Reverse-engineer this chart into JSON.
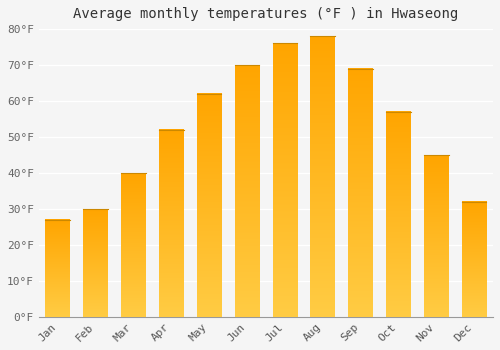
{
  "title": "Average monthly temperatures (°F ) in Hwaseong",
  "months": [
    "Jan",
    "Feb",
    "Mar",
    "Apr",
    "May",
    "Jun",
    "Jul",
    "Aug",
    "Sep",
    "Oct",
    "Nov",
    "Dec"
  ],
  "values": [
    27,
    30,
    40,
    52,
    62,
    70,
    76,
    78,
    69,
    57,
    45,
    32
  ],
  "bar_color_main": "#FFA500",
  "bar_color_light": "#FFCC55",
  "bar_edge_color": "#CC8800",
  "background_color": "#F5F5F5",
  "grid_color": "#DDDDDD",
  "ylim": [
    0,
    80
  ],
  "yticks": [
    0,
    10,
    20,
    30,
    40,
    50,
    60,
    70,
    80
  ],
  "ytick_labels": [
    "0°F",
    "10°F",
    "20°F",
    "30°F",
    "40°F",
    "50°F",
    "60°F",
    "70°F",
    "80°F"
  ],
  "title_fontsize": 10,
  "tick_fontsize": 8,
  "font_family": "monospace"
}
